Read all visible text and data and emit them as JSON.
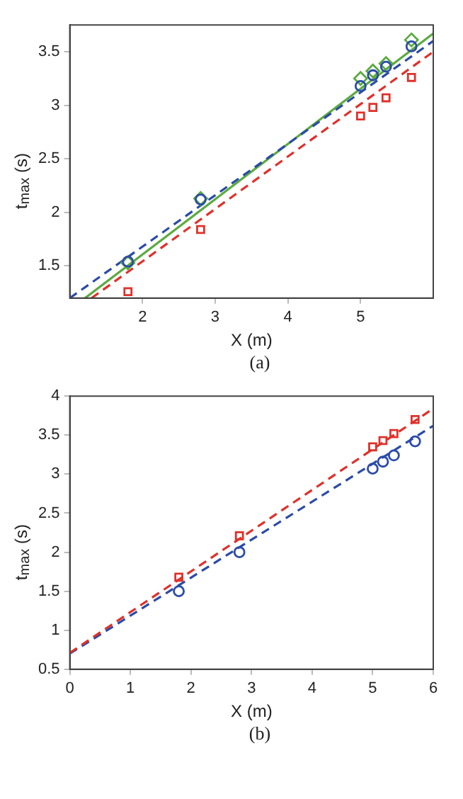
{
  "chart_data": [
    {
      "type": "scatter",
      "xlabel": "X (m)",
      "ylabel": "t$_{max}$ (s)",
      "annotations": [
        "(a)"
      ],
      "xlim": [
        1,
        6
      ],
      "xticks": [
        2,
        3,
        4,
        5
      ],
      "ylim": [
        1.2,
        3.75
      ],
      "yticks": [
        1.5,
        2,
        2.5,
        3,
        3.5
      ],
      "x": [
        1.8,
        2.8,
        5.0,
        5.17,
        5.35,
        5.7
      ],
      "series": [
        {
          "color": "#2b4ba8",
          "marker": "circle",
          "values": [
            1.54,
            2.12,
            3.18,
            3.28,
            3.36,
            3.55
          ]
        },
        {
          "color": "#5aab3f",
          "marker": "diamond",
          "values": [
            1.53,
            2.13,
            3.25,
            3.32,
            3.39,
            3.61
          ]
        },
        {
          "color": "#e0302a",
          "marker": "square",
          "values": [
            1.26,
            1.84,
            2.9,
            2.98,
            3.07,
            3.26
          ]
        },
        {
          "type": "line",
          "color": "#2b4ba8",
          "line_style": "dashed",
          "marker": "none",
          "x": [
            1.0,
            6.0
          ],
          "values": [
            1.2,
            3.6
          ]
        },
        {
          "type": "line",
          "color": "#5aab3f",
          "line_style": "solid",
          "marker": "none",
          "x": [
            1.21,
            6.0
          ],
          "values": [
            1.2,
            3.67
          ]
        },
        {
          "type": "line",
          "color": "#e0302a",
          "line_style": "dashed",
          "marker": "none",
          "x": [
            1.3,
            6.0
          ],
          "values": [
            1.2,
            3.5
          ]
        }
      ]
    },
    {
      "type": "scatter",
      "xlabel": "X (m)",
      "ylabel": "t$_{max}$ (s)",
      "annotations": [
        "(b)"
      ],
      "xlim": [
        0,
        6
      ],
      "xticks": [
        0,
        1,
        2,
        3,
        4,
        5,
        6
      ],
      "ylim": [
        0.5,
        4
      ],
      "yticks": [
        0.5,
        1,
        1.5,
        2,
        2.5,
        3,
        3.5,
        4
      ],
      "x": [
        1.8,
        2.8,
        5.0,
        5.17,
        5.35,
        5.7
      ],
      "series": [
        {
          "color": "#e0302a",
          "marker": "square",
          "values": [
            1.68,
            2.21,
            3.35,
            3.43,
            3.52,
            3.7
          ]
        },
        {
          "color": "#2b4ba8",
          "marker": "circle",
          "values": [
            1.5,
            2.0,
            3.07,
            3.16,
            3.24,
            3.42
          ]
        },
        {
          "type": "line",
          "color": "#e0302a",
          "line_style": "dashed",
          "marker": "none",
          "x": [
            0,
            6
          ],
          "values": [
            0.71,
            3.84
          ]
        },
        {
          "type": "line",
          "color": "#2b4ba8",
          "line_style": "dashed",
          "marker": "none",
          "x": [
            0,
            6
          ],
          "values": [
            0.7,
            3.62
          ]
        }
      ]
    }
  ]
}
